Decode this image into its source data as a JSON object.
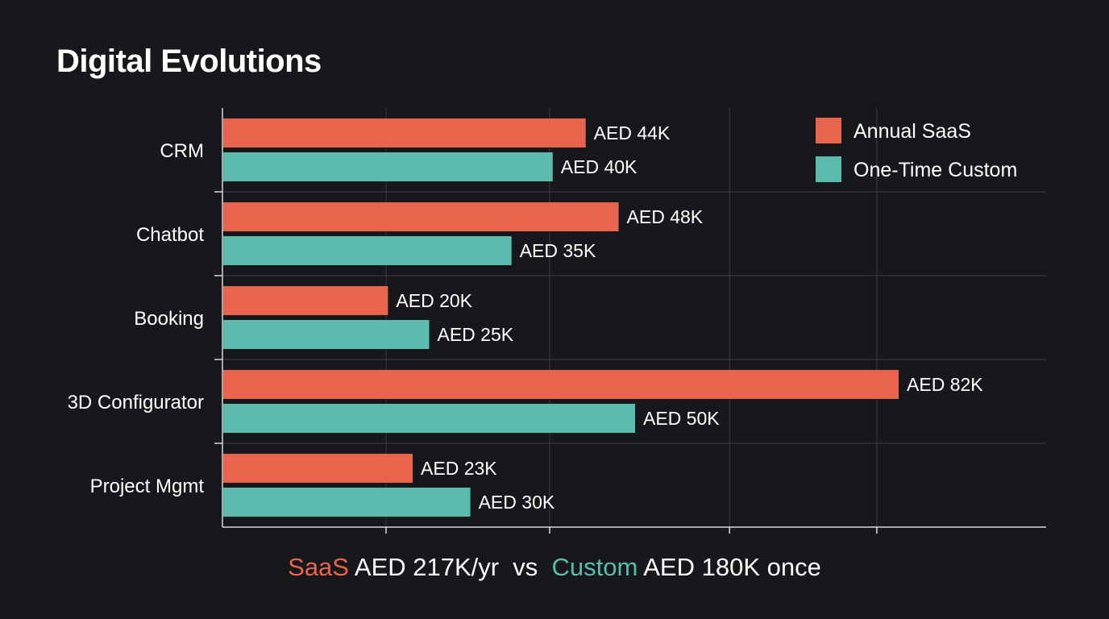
{
  "title": "Digital Evolutions",
  "colors": {
    "saas": "#e8644c",
    "custom": "#5bbcae",
    "grid": "#3a3c40",
    "axis": "#d9d9d9",
    "background": "#17181b"
  },
  "chart_data": {
    "type": "bar",
    "orientation": "horizontal",
    "categories": [
      "CRM",
      "Chatbot",
      "Booking",
      "3D Configurator",
      "Project Mgmt"
    ],
    "series": [
      {
        "name": "Annual SaaS",
        "values": [
          44,
          48,
          20,
          82,
          23
        ],
        "labels": [
          "AED 44K",
          "AED 48K",
          "AED 20K",
          "AED 82K",
          "AED 23K"
        ]
      },
      {
        "name": "One-Time Custom",
        "values": [
          40,
          35,
          25,
          50,
          30
        ],
        "labels": [
          "AED 40K",
          "AED 35K",
          "AED 25K",
          "AED 50K",
          "AED 30K"
        ]
      }
    ],
    "xlim": [
      0,
      100
    ],
    "unit": "AED thousands",
    "grid": true,
    "legend": "top-right"
  },
  "footer": {
    "saas_word": "SaaS",
    "saas_text": " AED 217K/yr  vs  ",
    "custom_word": "Custom",
    "custom_text": " AED 180K once"
  }
}
